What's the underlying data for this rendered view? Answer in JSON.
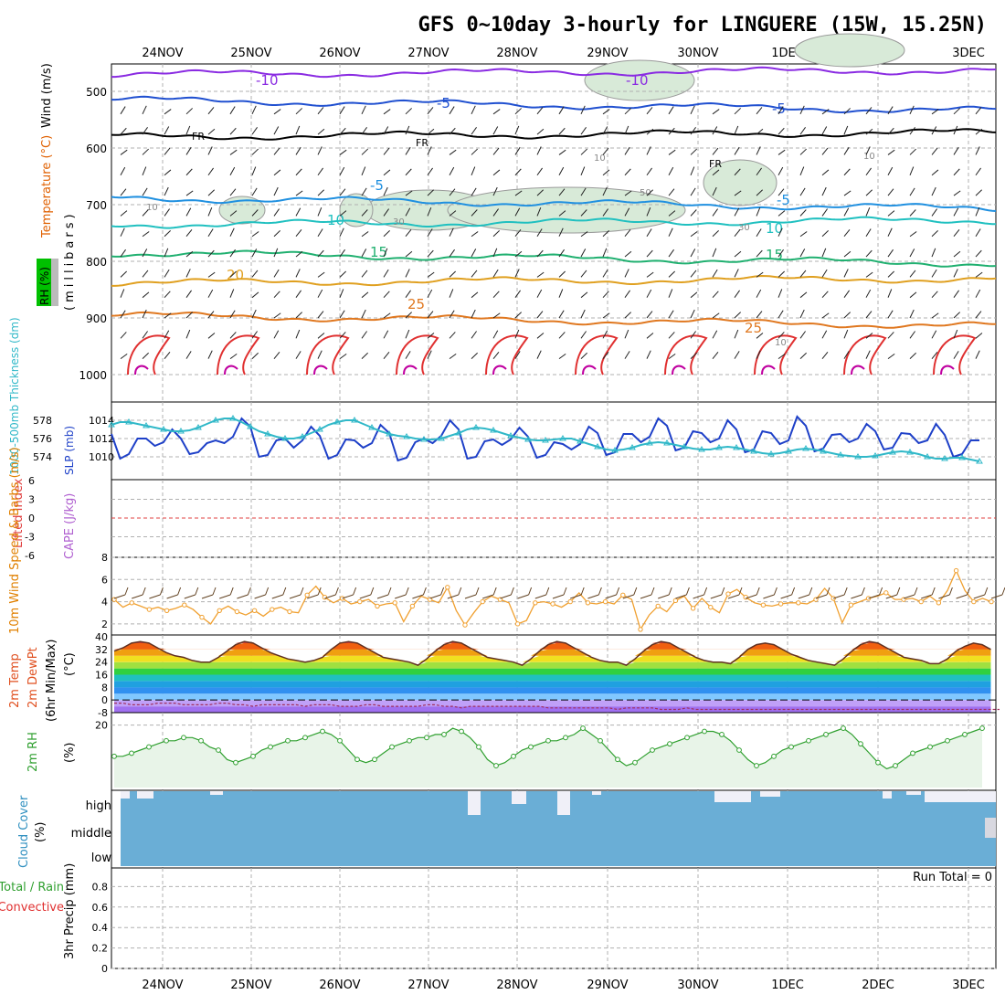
{
  "title": "GFS 0~10day 3-hourly for LINGUERE (15W, 15.25N)",
  "colors": {
    "grid": "#b0b0b0",
    "temp_minus10": "#8a2be2",
    "temp_minus5": "#2050d0",
    "temp_fr": "#000000",
    "temp_5": "#2090e0",
    "temp_10": "#20c0c0",
    "temp_15": "#20b070",
    "temp_20": "#e0a020",
    "temp_25": "#e07820",
    "temp_30": "#e03030",
    "temp_35": "#c000a0",
    "rh_fill": "#d8ead8",
    "slp": "#1e40c8",
    "thickness": "#30b8c8",
    "wind10": "#f0a030",
    "barb": "#604020",
    "rh2m": "#30a030",
    "rh2m_fill": "#e8f4e8",
    "cloud": "#6aaed6",
    "cloud_clear": "#f0f0f8"
  },
  "chart_data": [
    {
      "type": "line",
      "panel": "upper-air",
      "x": [
        "24NOV",
        "25NOV",
        "26NOV",
        "27NOV",
        "28NOV",
        "29NOV",
        "30NOV",
        "1DEC",
        "2DEC",
        "3DEC"
      ],
      "ylabel_wind": "Wind (m/s)",
      "ylabel_temp": "Temperature (°C)",
      "ylabel_rh": "RH (%)",
      "ylabel_pressure": "(millibars)",
      "yticks": [
        "500",
        "600",
        "700",
        "800",
        "900",
        "1000"
      ],
      "ylim": [
        1000,
        450
      ],
      "isotherms": [
        {
          "name": "-10",
          "level_mb": 470
        },
        {
          "name": "-5",
          "level_mb": 515
        },
        {
          "name": "FR",
          "level_mb": 580
        },
        {
          "name": "-5b",
          "level_mb": 690
        },
        {
          "name": "10",
          "level_mb": 735
        },
        {
          "name": "15",
          "level_mb": 785
        },
        {
          "name": "20",
          "level_mb": 835
        },
        {
          "name": "25",
          "level_mb": 890
        }
      ],
      "contour_labels": [
        "-10",
        "-10",
        "-5",
        "-5",
        "FR",
        "FR",
        "FR",
        "-5",
        "-5",
        "10",
        "10",
        "15",
        "15",
        "20",
        "25",
        "25"
      ],
      "rh_labels": [
        "10",
        "10",
        "10",
        "30",
        "30",
        "30",
        "50"
      ]
    },
    {
      "type": "line",
      "panel": "thickness-slp",
      "ylabel_left": "1000-500mb Thickness (dm)",
      "ylabel_right": "SLP (mb)",
      "yticks_left": [
        "578",
        "576",
        "574"
      ],
      "yticks_right": [
        "1014",
        "1012",
        "1010"
      ],
      "series": [
        {
          "name": "SLP (mb)",
          "values": [
            1012.5,
            1009.8,
            1010.3,
            1012.0,
            1012.0,
            1011.2,
            1011.6,
            1013.0,
            1012.0,
            1010.3,
            1010.5,
            1011.5,
            1011.8,
            1011.5,
            1012.2,
            1014.2,
            1013.3,
            1010.0,
            1010.2,
            1011.8,
            1012.0,
            1011.0,
            1011.8,
            1013.3,
            1012.3,
            1009.8,
            1010.2,
            1011.9,
            1011.8,
            1011.0,
            1011.5,
            1013.5,
            1012.6,
            1009.6,
            1009.9,
            1011.6,
            1012.0,
            1011.5,
            1012.3,
            1014.0,
            1013.0,
            1009.8,
            1010.0,
            1011.7,
            1011.9,
            1011.3,
            1011.9,
            1013.2,
            1012.2,
            1009.9,
            1010.2,
            1011.6,
            1011.4,
            1010.8,
            1011.4,
            1013.3,
            1012.6,
            1010.2,
            1010.5,
            1012.5,
            1012.5,
            1011.6,
            1012.2,
            1014.2,
            1013.4,
            1010.7,
            1011.0,
            1012.8,
            1012.6,
            1011.6,
            1012.0,
            1014.0,
            1013.0,
            1010.5,
            1010.8,
            1012.8,
            1012.6,
            1011.4,
            1011.8,
            1014.4,
            1013.4,
            1010.6,
            1010.9,
            1012.4,
            1012.5,
            1011.6,
            1012.0,
            1013.6,
            1012.8,
            1010.8,
            1011.0,
            1012.6,
            1012.5,
            1011.5,
            1011.8,
            1013.6,
            1012.4,
            1010.0,
            1010.3,
            1011.8,
            1011.8
          ]
        },
        {
          "name": "Thickness (dm)",
          "values": [
            577.5,
            577.8,
            577.8,
            577.6,
            577.4,
            577.2,
            577.0,
            576.8,
            576.8,
            576.9,
            577.2,
            577.6,
            578.0,
            578.2,
            578.2,
            577.8,
            577.3,
            576.8,
            576.5,
            576.2,
            576.0,
            576.0,
            576.2,
            576.6,
            577.0,
            577.5,
            577.8,
            578.0,
            578.0,
            577.6,
            577.2,
            576.8,
            576.5,
            576.3,
            576.2,
            576.0,
            575.9,
            575.9,
            576.0,
            576.3,
            576.6,
            577.0,
            577.2,
            577.1,
            576.9,
            576.6,
            576.3,
            576.1,
            575.9,
            575.8,
            575.8,
            575.9,
            576.0,
            576.0,
            575.7,
            575.4,
            575.1,
            574.8,
            574.7,
            574.8,
            575.0,
            575.3,
            575.5,
            575.6,
            575.5,
            575.3,
            575.1,
            574.9,
            574.8,
            574.8,
            575.0,
            575.1,
            575.0,
            574.8,
            574.6,
            574.4,
            574.3,
            574.4,
            574.6,
            574.8,
            574.9,
            574.8,
            574.6,
            574.4,
            574.2,
            574.1,
            574.0,
            574.0,
            574.1,
            574.3,
            574.5,
            574.6,
            574.5,
            574.3,
            574.0,
            573.8,
            573.8,
            573.9,
            573.9,
            573.7,
            573.5
          ]
        }
      ]
    },
    {
      "type": "line",
      "panel": "cape-li",
      "ylabel_left": "Lifted Index",
      "ylabel_right": "CAPE (J/kg)",
      "yticks": [
        "-6",
        "-3",
        "0",
        "3",
        "6"
      ],
      "series": []
    },
    {
      "type": "line",
      "panel": "wind10m",
      "ylabel": "10m Wind Speed & Barbs (m/s)",
      "yticks": [
        "2",
        "4",
        "6",
        "8"
      ],
      "ylim": [
        1,
        8
      ],
      "series": [
        {
          "name": "10m Wind Speed",
          "values": [
            4.2,
            3.5,
            3.9,
            3.6,
            3.3,
            3.5,
            3.2,
            3.4,
            3.7,
            3.3,
            2.6,
            2.0,
            3.2,
            3.6,
            3.1,
            2.8,
            3.2,
            2.7,
            3.3,
            3.5,
            3.1,
            3.0,
            4.6,
            5.4,
            4.4,
            3.9,
            4.3,
            3.8,
            4.0,
            4.2,
            3.6,
            3.8,
            3.9,
            2.2,
            3.6,
            4.5,
            4.2,
            3.9,
            5.3,
            3.2,
            1.9,
            3.0,
            4.0,
            4.5,
            4.2,
            3.9,
            2.0,
            2.3,
            3.9,
            4.0,
            3.8,
            3.5,
            4.0,
            4.8,
            3.9,
            3.8,
            4.0,
            3.8,
            4.6,
            4.2,
            1.5,
            2.8,
            3.6,
            3.1,
            4.1,
            4.5,
            3.4,
            4.3,
            3.5,
            3.0,
            4.7,
            5.1,
            4.4,
            3.9,
            3.7,
            3.6,
            3.8,
            3.9,
            3.9,
            3.8,
            4.2,
            5.2,
            4.3,
            2.1,
            3.7,
            4.0,
            4.3,
            4.5,
            4.8,
            4.2,
            4.2,
            4.3,
            4.0,
            4.5,
            3.9,
            5.0,
            6.8,
            5.0,
            4.0,
            4.3,
            4.0
          ]
        }
      ]
    },
    {
      "type": "area",
      "panel": "temp2m",
      "ylabel": "2m Temp 2m DewPt (6hr Min/Max) (°C)",
      "yticks": [
        "-8",
        "0",
        "8",
        "16",
        "24",
        "32",
        "40"
      ],
      "ylim": [
        -8,
        40
      ],
      "series": [
        {
          "name": "2m Temp",
          "values": [
            31,
            33,
            36,
            37,
            36,
            33,
            30,
            28,
            27,
            25,
            24,
            24,
            27,
            31,
            35,
            37,
            36,
            33,
            30,
            28,
            26,
            25,
            24,
            25,
            27,
            32,
            36,
            37,
            36,
            33,
            30,
            27,
            26,
            25,
            24,
            22,
            26,
            31,
            35,
            37,
            36,
            33,
            30,
            27,
            26,
            25,
            24,
            22,
            26,
            31,
            35,
            37,
            36,
            33,
            30,
            27,
            25,
            24,
            24,
            22,
            26,
            31,
            35,
            37,
            36,
            33,
            30,
            27,
            25,
            24,
            24,
            23,
            27,
            32,
            35,
            36,
            35,
            32,
            29,
            27,
            25,
            24,
            23,
            22,
            26,
            31,
            35,
            37,
            36,
            33,
            30,
            27,
            26,
            25,
            23,
            23,
            26,
            31,
            34,
            36,
            35,
            32
          ]
        },
        {
          "name": "2m DewPt",
          "values": [
            -2,
            -2,
            -3,
            -3,
            -3,
            -2,
            -2,
            -2,
            -3,
            -3,
            -3,
            -3,
            -2,
            -2,
            -3,
            -3,
            -4,
            -3,
            -3,
            -3,
            -3,
            -3,
            -4,
            -3,
            -3,
            -3,
            -4,
            -4,
            -4,
            -3,
            -3,
            -4,
            -4,
            -4,
            -4,
            -4,
            -3,
            -3,
            -4,
            -4,
            -5,
            -4,
            -4,
            -4,
            -4,
            -4,
            -4,
            -4,
            -4,
            -4,
            -5,
            -5,
            -5,
            -5,
            -5,
            -5,
            -5,
            -5,
            -6,
            -5,
            -5,
            -5,
            -5,
            -6,
            -6,
            -6,
            -5,
            -6,
            -6,
            -6,
            -6,
            -6,
            -6,
            -6,
            -6,
            -6,
            -6,
            -6,
            -6,
            -6,
            -6,
            -6,
            -6,
            -6,
            -6,
            -6,
            -6,
            -6,
            -6,
            -6,
            -6,
            -6,
            -6,
            -6,
            -6,
            -6,
            -6,
            -6,
            -6,
            -6,
            -6,
            -6,
            -6
          ]
        }
      ]
    },
    {
      "type": "line",
      "panel": "rh2m",
      "ylabel": "2m RH (%)",
      "yticks": [
        "20"
      ],
      "ylim": [
        0,
        24
      ],
      "series": [
        {
          "name": "2m RH",
          "values": [
            10,
            10,
            11,
            12,
            13,
            14,
            15,
            15,
            16,
            16,
            15,
            13,
            12,
            9,
            8,
            9,
            10,
            12,
            13,
            14,
            15,
            15,
            16,
            17,
            18,
            17,
            15,
            12,
            9,
            8,
            9,
            11,
            13,
            14,
            15,
            16,
            16,
            17,
            17,
            19,
            18,
            16,
            13,
            9,
            7,
            8,
            10,
            12,
            13,
            14,
            15,
            15,
            16,
            17,
            19,
            17,
            15,
            12,
            9,
            7,
            8,
            10,
            12,
            13,
            14,
            15,
            16,
            17,
            18,
            18,
            17,
            15,
            12,
            9,
            7,
            8,
            10,
            12,
            13,
            14,
            15,
            16,
            17,
            18,
            19,
            17,
            14,
            11,
            8,
            6,
            7,
            9,
            11,
            12,
            13,
            14,
            15,
            16,
            17,
            18,
            19
          ]
        }
      ]
    },
    {
      "type": "bar",
      "panel": "cloud",
      "ylabel": "Cloud Cover (%)",
      "yticks": [
        "high",
        "middle",
        "low"
      ],
      "series": []
    },
    {
      "type": "bar",
      "panel": "precip",
      "ylabel": "3hr Precip (mm)",
      "ylabel_2": "Total / Rain",
      "ylabel_3": "Convective",
      "yticks": [
        "0",
        "0.2",
        "0.4",
        "0.6",
        "0.8"
      ],
      "ylim": [
        0,
        1
      ],
      "run_total": "Run Total = 0",
      "series": []
    }
  ]
}
